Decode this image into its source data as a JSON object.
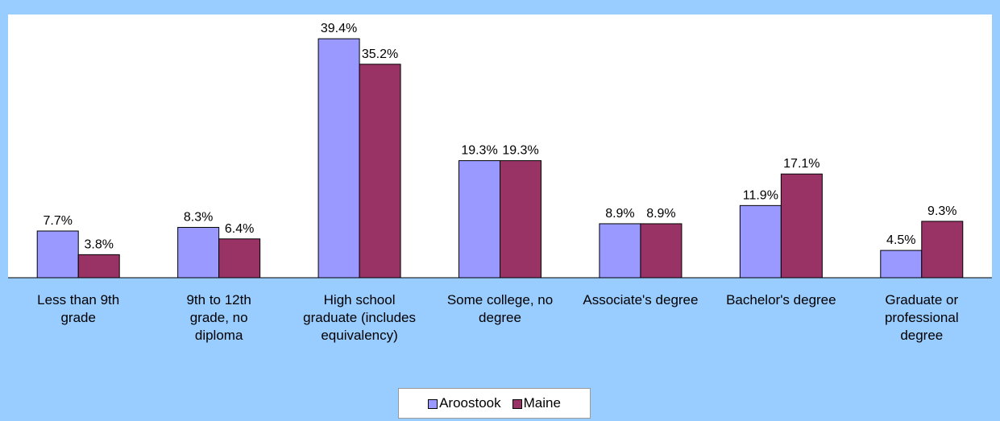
{
  "chart_data": {
    "type": "bar",
    "categories": [
      "Less than 9th grade",
      "9th to 12th grade, no diploma",
      "High school graduate (includes equivalency)",
      "Some college, no degree",
      "Associate's degree",
      "Bachelor's degree",
      "Graduate or professional degree"
    ],
    "series": [
      {
        "name": "Aroostook",
        "color": "#9999ff",
        "values": [
          7.7,
          8.3,
          39.4,
          19.3,
          8.9,
          11.9,
          4.5
        ],
        "value_labels": [
          "7.7%",
          "8.3%",
          "39.4%",
          "19.3%",
          "8.9%",
          "11.9%",
          "4.5%"
        ]
      },
      {
        "name": "Maine",
        "color": "#993366",
        "values": [
          3.8,
          6.4,
          35.2,
          19.3,
          8.9,
          17.1,
          9.3
        ],
        "value_labels": [
          "3.8%",
          "6.4%",
          "35.2%",
          "19.3%",
          "8.9%",
          "17.1%",
          "9.3%"
        ]
      }
    ],
    "ylim": [
      0,
      43.4
    ],
    "legend": "bottom"
  }
}
